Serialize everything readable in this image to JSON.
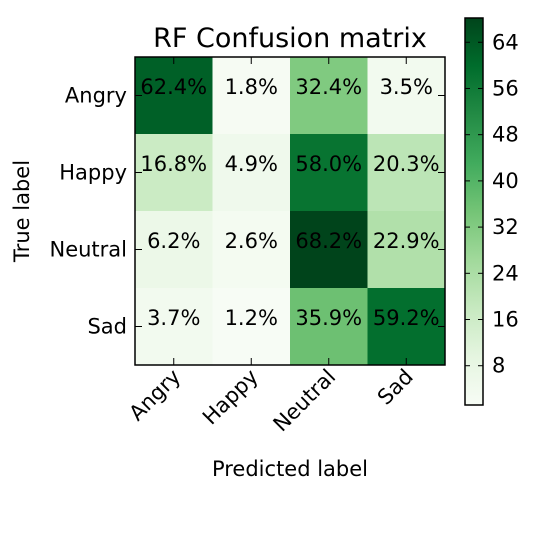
{
  "chart_data": {
    "type": "heatmap",
    "title": "RF Confusion matrix",
    "xlabel": "Predicted label",
    "ylabel": "True label",
    "x_categories": [
      "Angry",
      "Happy",
      "Neutral",
      "Sad"
    ],
    "y_categories": [
      "Angry",
      "Happy",
      "Neutral",
      "Sad"
    ],
    "values": [
      [
        62.4,
        1.8,
        32.4,
        3.5
      ],
      [
        16.8,
        4.9,
        58.0,
        20.3
      ],
      [
        6.2,
        2.6,
        68.2,
        22.9
      ],
      [
        3.7,
        1.2,
        35.9,
        59.2
      ]
    ],
    "value_labels": [
      [
        "62.4%",
        "1.8%",
        "32.4%",
        "3.5%"
      ],
      [
        "16.8%",
        "4.9%",
        "58.0%",
        "20.3%"
      ],
      [
        "6.2%",
        "2.6%",
        "68.2%",
        "22.9%"
      ],
      [
        "3.7%",
        "1.2%",
        "35.9%",
        "59.2%"
      ]
    ],
    "colormap": "Greens",
    "color_range": [
      1.2,
      68.2
    ],
    "colorbar_ticks": [
      "8",
      "16",
      "24",
      "32",
      "40",
      "48",
      "56",
      "64"
    ]
  }
}
